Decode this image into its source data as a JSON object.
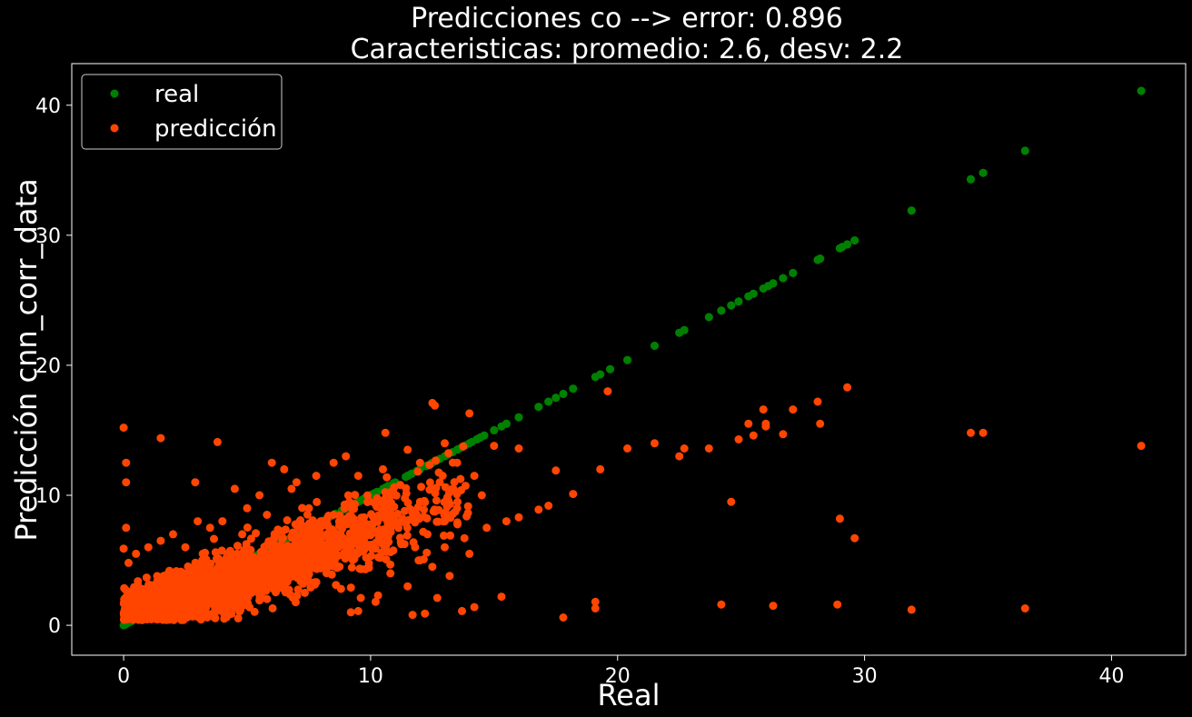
{
  "chart_data": {
    "type": "scatter",
    "title": "Predicciones co --> error: 0.896",
    "subtitle": "Caracteristicas: promedio: 2.6, desv: 2.2",
    "xlabel": "Real",
    "ylabel": "Predicción cnn_corr_data",
    "xlim": [
      -2.1,
      43.0
    ],
    "ylim": [
      -2.3,
      43.2
    ],
    "xticks": [
      0,
      10,
      20,
      30,
      40
    ],
    "yticks": [
      0,
      10,
      20,
      30,
      40
    ],
    "grid": false,
    "legend_position": "top-left",
    "background": "#000000",
    "series": [
      {
        "name": "real",
        "color": "#008000",
        "points": [
          [
            0,
            0
          ],
          [
            1,
            1
          ],
          [
            2,
            2
          ],
          [
            3,
            3
          ],
          [
            4,
            4
          ],
          [
            5,
            5
          ],
          [
            6,
            6
          ],
          [
            7,
            7
          ],
          [
            8,
            8
          ],
          [
            9,
            9
          ],
          [
            10,
            10
          ],
          [
            10.5,
            10.5
          ],
          [
            11,
            11
          ],
          [
            11.5,
            11.5
          ],
          [
            12,
            12
          ],
          [
            12.5,
            12.5
          ],
          [
            13,
            13
          ],
          [
            13.5,
            13.5
          ],
          [
            14,
            14
          ],
          [
            14.3,
            14.3
          ],
          [
            14.6,
            14.6
          ],
          [
            15.0,
            15.0
          ],
          [
            15.3,
            15.3
          ],
          [
            15.5,
            15.5
          ],
          [
            16.0,
            16.0
          ],
          [
            16.8,
            16.8
          ],
          [
            17.2,
            17.2
          ],
          [
            17.5,
            17.5
          ],
          [
            17.8,
            17.8
          ],
          [
            18.2,
            18.2
          ],
          [
            19.1,
            19.1
          ],
          [
            19.3,
            19.3
          ],
          [
            19.7,
            19.7
          ],
          [
            20.4,
            20.4
          ],
          [
            21.5,
            21.5
          ],
          [
            22.5,
            22.5
          ],
          [
            22.7,
            22.7
          ],
          [
            23.7,
            23.7
          ],
          [
            24.2,
            24.2
          ],
          [
            24.6,
            24.6
          ],
          [
            24.9,
            24.9
          ],
          [
            25.3,
            25.3
          ],
          [
            25.5,
            25.5
          ],
          [
            25.9,
            25.9
          ],
          [
            26.1,
            26.1
          ],
          [
            26.3,
            26.3
          ],
          [
            26.7,
            26.7
          ],
          [
            27.1,
            27.1
          ],
          [
            28.1,
            28.1
          ],
          [
            28.2,
            28.2
          ],
          [
            29.0,
            29.0
          ],
          [
            29.1,
            29.1
          ],
          [
            29.3,
            29.3
          ],
          [
            29.6,
            29.6
          ],
          [
            31.9,
            31.9
          ],
          [
            34.3,
            34.3
          ],
          [
            34.8,
            34.8
          ],
          [
            36.5,
            36.5
          ],
          [
            41.2,
            41.1
          ]
        ]
      },
      {
        "name": "predicción",
        "color": "#ff4500",
        "points": [
          [
            0.0,
            15.2
          ],
          [
            0.1,
            12.5
          ],
          [
            0.1,
            11.0
          ],
          [
            0.0,
            5.9
          ],
          [
            0.1,
            7.5
          ],
          [
            1.5,
            14.4
          ],
          [
            3.8,
            14.1
          ],
          [
            2.9,
            11.0
          ],
          [
            12.5,
            17.1
          ],
          [
            12.6,
            16.9
          ],
          [
            14.0,
            16.3
          ],
          [
            19.6,
            18.0
          ],
          [
            10.6,
            14.8
          ],
          [
            9.0,
            13.0
          ],
          [
            11.5,
            13.5
          ],
          [
            13.0,
            14.0
          ],
          [
            12.0,
            12.5
          ],
          [
            15.0,
            13.8
          ],
          [
            16.0,
            13.6
          ],
          [
            20.4,
            13.6
          ],
          [
            21.5,
            14.0
          ],
          [
            22.5,
            13.0
          ],
          [
            22.7,
            13.6
          ],
          [
            23.7,
            13.6
          ],
          [
            24.6,
            9.5
          ],
          [
            24.9,
            14.3
          ],
          [
            25.3,
            15.5
          ],
          [
            25.5,
            14.6
          ],
          [
            25.9,
            16.6
          ],
          [
            26.0,
            15.5
          ],
          [
            26.0,
            15.3
          ],
          [
            26.7,
            14.7
          ],
          [
            27.1,
            16.6
          ],
          [
            28.1,
            17.2
          ],
          [
            28.2,
            15.5
          ],
          [
            29.0,
            8.2
          ],
          [
            29.3,
            18.3
          ],
          [
            29.6,
            6.7
          ],
          [
            34.3,
            14.8
          ],
          [
            34.8,
            14.8
          ],
          [
            41.2,
            13.8
          ],
          [
            19.3,
            12.0
          ],
          [
            17.2,
            9.2
          ],
          [
            16.8,
            8.9
          ],
          [
            16.0,
            8.3
          ],
          [
            18.2,
            10.1
          ],
          [
            17.5,
            11.9
          ],
          [
            15.5,
            8.0
          ],
          [
            24.2,
            1.6
          ],
          [
            26.3,
            1.5
          ],
          [
            28.9,
            1.6
          ],
          [
            31.9,
            1.2
          ],
          [
            36.5,
            1.3
          ],
          [
            19.1,
            1.8
          ],
          [
            19.1,
            1.3
          ],
          [
            17.8,
            0.6
          ],
          [
            15.3,
            2.2
          ],
          [
            13.7,
            1.1
          ],
          [
            14.2,
            1.4
          ],
          [
            12.7,
            2.1
          ],
          [
            11.7,
            0.8
          ],
          [
            12.2,
            0.9
          ],
          [
            9.2,
            1.0
          ],
          [
            10.2,
            1.8
          ],
          [
            10.3,
            2.3
          ],
          [
            9.6,
            2.1
          ],
          [
            9.5,
            1.1
          ],
          [
            8.8,
            2.8
          ],
          [
            9.2,
            2.9
          ],
          [
            12.0,
            5.0
          ],
          [
            13.0,
            6.0
          ],
          [
            13.8,
            6.7
          ],
          [
            14.7,
            7.5
          ],
          [
            14.5,
            10.0
          ],
          [
            13.5,
            9.0
          ],
          [
            12.0,
            9.5
          ],
          [
            11.0,
            8.0
          ],
          [
            10.0,
            7.5
          ],
          [
            9.0,
            6.0
          ],
          [
            8.5,
            8.5
          ],
          [
            7.5,
            9.0
          ],
          [
            7.0,
            11.0
          ],
          [
            6.5,
            12.0
          ],
          [
            6.0,
            12.5
          ],
          [
            5.5,
            10.0
          ],
          [
            5.0,
            9.0
          ],
          [
            4.5,
            10.5
          ],
          [
            4.0,
            8.0
          ],
          [
            3.5,
            7.5
          ],
          [
            3.0,
            8.0
          ],
          [
            2.5,
            6.0
          ],
          [
            2.0,
            7.0
          ],
          [
            1.5,
            6.5
          ],
          [
            1.0,
            6.0
          ],
          [
            0.5,
            5.5
          ],
          [
            0.2,
            4.8
          ],
          [
            11.5,
            3.0
          ],
          [
            10.8,
            4.0
          ],
          [
            12.5,
            4.5
          ],
          [
            13.2,
            3.8
          ],
          [
            14.0,
            5.5
          ],
          [
            10.5,
            6.5
          ],
          [
            8.0,
            5.0
          ],
          [
            7.5,
            4.0
          ],
          [
            6.5,
            3.0
          ],
          [
            9.5,
            11.5
          ],
          [
            10.5,
            12.0
          ],
          [
            11.2,
            10.8
          ],
          [
            8.5,
            12.5
          ],
          [
            7.8,
            11.5
          ],
          [
            6.8,
            10.5
          ],
          [
            5.8,
            8.5
          ],
          [
            4.8,
            7.0
          ],
          [
            3.2,
            5.5
          ],
          [
            12.8,
            11.0
          ],
          [
            13.5,
            12.5
          ],
          [
            14.2,
            11.5
          ],
          [
            13.0,
            8.0
          ],
          [
            12.3,
            7.0
          ],
          [
            11.8,
            6.0
          ]
        ],
        "dense_clusters": [
          {
            "x_center": 2.5,
            "x_spread": 2.5,
            "y_center": 2.3,
            "y_spread": 1.6,
            "count": 1100
          },
          {
            "x_center": 5.5,
            "x_spread": 2.5,
            "y_center": 4.2,
            "y_spread": 1.8,
            "count": 650
          },
          {
            "x_center": 8.5,
            "x_spread": 2.5,
            "y_center": 6.2,
            "y_spread": 2.2,
            "count": 320
          },
          {
            "x_center": 11.5,
            "x_spread": 2.5,
            "y_center": 8.5,
            "y_spread": 2.6,
            "count": 160
          }
        ]
      }
    ]
  }
}
